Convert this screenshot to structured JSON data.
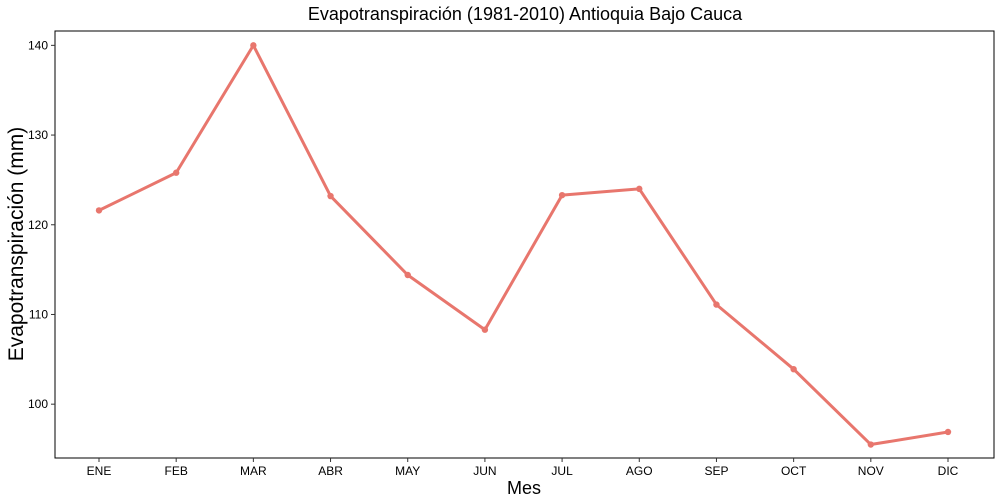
{
  "chart_data": {
    "type": "line",
    "title": "Evapotranspiración (1981-2010)  Antioquia Bajo Cauca",
    "xlabel": "Mes",
    "ylabel": "Evapotranspiración (mm)",
    "categories": [
      "ENE",
      "FEB",
      "MAR",
      "ABR",
      "MAY",
      "JUN",
      "JUL",
      "AGO",
      "SEP",
      "OCT",
      "NOV",
      "DIC"
    ],
    "series": [
      {
        "values": [
          121.6,
          125.8,
          140.0,
          123.2,
          114.4,
          108.3,
          123.3,
          124.0,
          111.1,
          103.9,
          95.5,
          96.9
        ],
        "color": "#e8766d"
      }
    ],
    "ylim": [
      94.0,
      141.6
    ],
    "yticks": [
      100,
      110,
      120,
      130,
      140
    ],
    "grid": false,
    "legend": "none"
  }
}
